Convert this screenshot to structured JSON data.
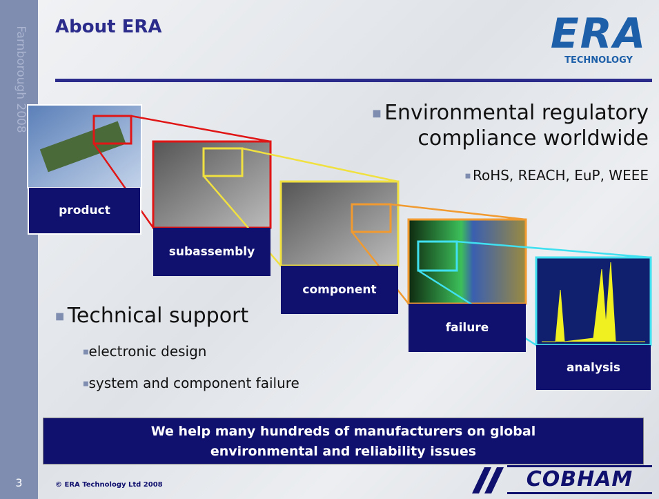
{
  "side_text": "Farnborough 2008",
  "header": {
    "title": "About ERA",
    "logo": {
      "name": "ERA",
      "tagline": "TECHNOLOGY"
    }
  },
  "bullets": {
    "main_1": "Environmental regulatory",
    "main_1_cont": "compliance worldwide",
    "sub_1": "RoHS, REACH, EuP, WEEE",
    "main_2": "Technical support",
    "sub_2a": "electronic design",
    "sub_2b": "system and component failure"
  },
  "stages": [
    "product",
    "subassembly",
    "component",
    "failure",
    "analysis"
  ],
  "banner": {
    "line1": "We help many hundreds of manufacturers on global",
    "line2": "environmental and reliability issues"
  },
  "footer": {
    "page": "3",
    "copyright": "© ERA Technology Ltd 2008",
    "partner": "COBHAM"
  }
}
